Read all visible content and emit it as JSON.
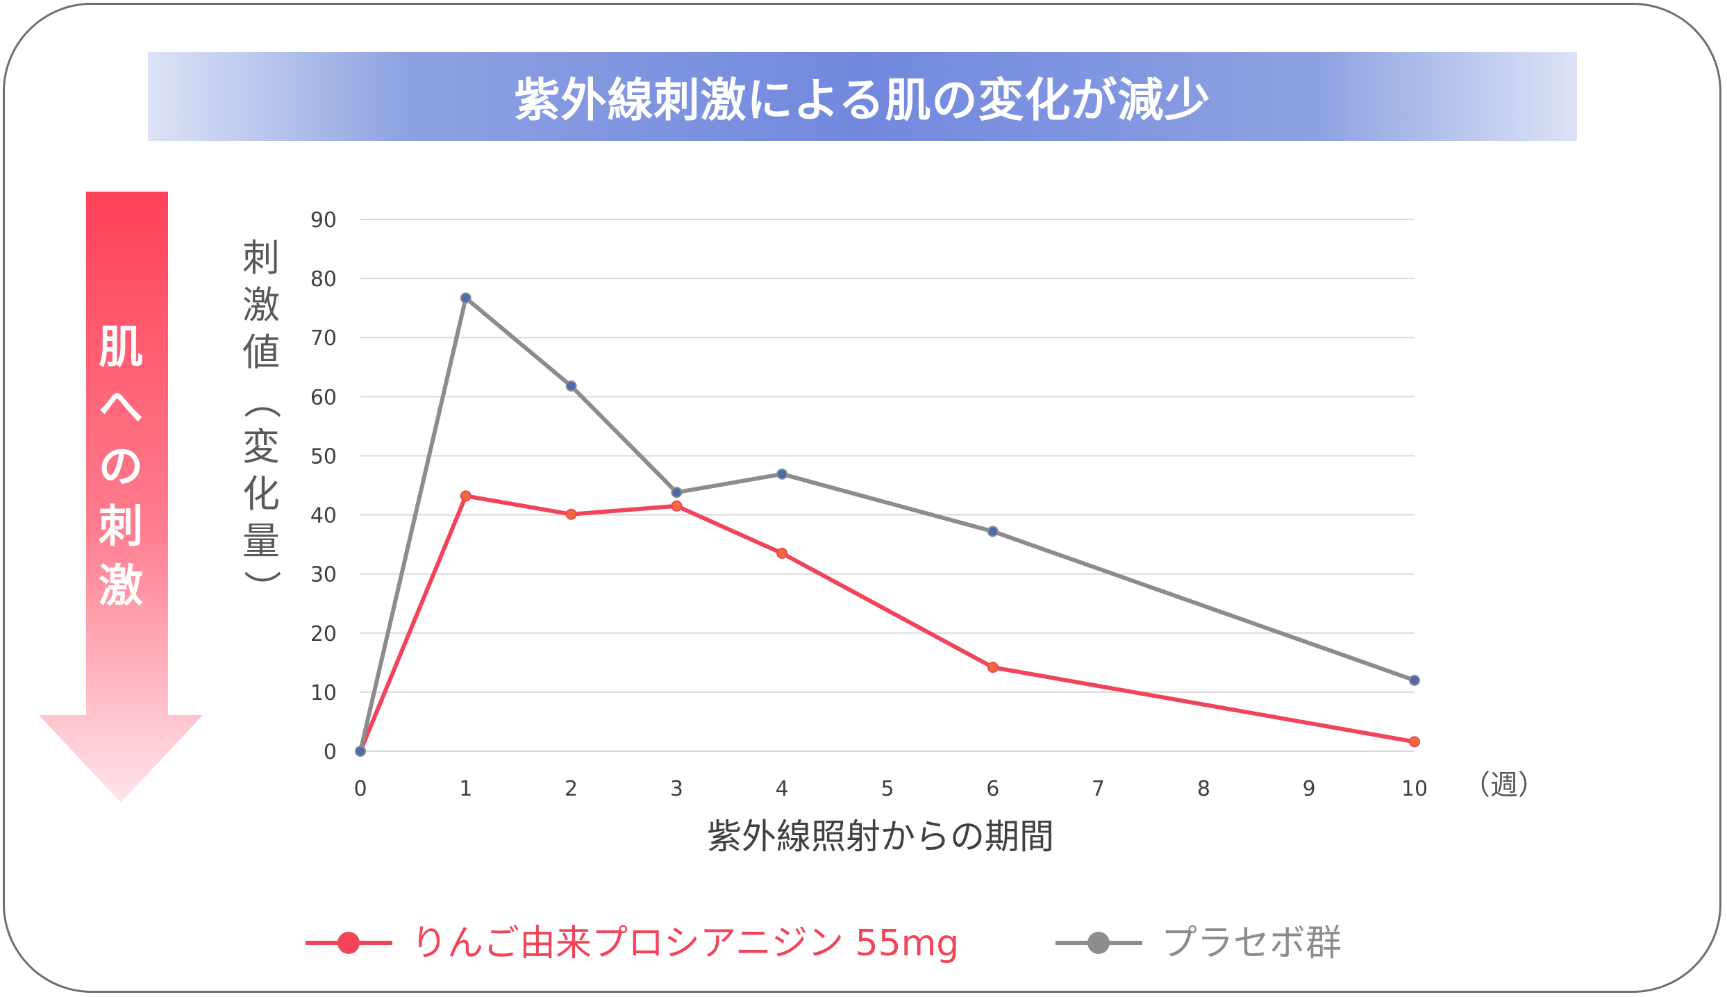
{
  "title": "紫外線刺激による肌の変化が減少",
  "side_arrow": {
    "label": "肌への刺激",
    "color_top": "#ff4159",
    "color_bottom": "#ffe4ea"
  },
  "chart_data": {
    "type": "line",
    "title": "紫外線刺激による肌の変化が減少",
    "xlabel": "紫外線照射からの期間",
    "x_unit": "（週）",
    "ylabel": "刺激値（変化量）",
    "x_ticks": [
      0,
      1,
      2,
      3,
      4,
      5,
      6,
      7,
      8,
      9,
      10
    ],
    "y_ticks": [
      0,
      10,
      20,
      30,
      40,
      50,
      60,
      70,
      80,
      90
    ],
    "xlim": [
      0,
      10
    ],
    "ylim": [
      0,
      90
    ],
    "grid": "horizontal",
    "legend_position": "bottom",
    "series": [
      {
        "name": "りんご由来プロシアニジン 55mg",
        "color": "#f24458",
        "marker_color": "#f26a3a",
        "x": [
          0,
          1,
          2,
          3,
          4,
          6,
          10
        ],
        "y": [
          0,
          43.2,
          40.1,
          41.5,
          33.5,
          14.2,
          1.6
        ]
      },
      {
        "name": "プラセボ群",
        "color": "#8c8c8c",
        "marker_color": "#4a6bb0",
        "x": [
          0,
          1,
          2,
          3,
          4,
          6,
          10
        ],
        "y": [
          0,
          76.7,
          61.8,
          43.8,
          46.9,
          37.2,
          12
        ]
      }
    ]
  }
}
